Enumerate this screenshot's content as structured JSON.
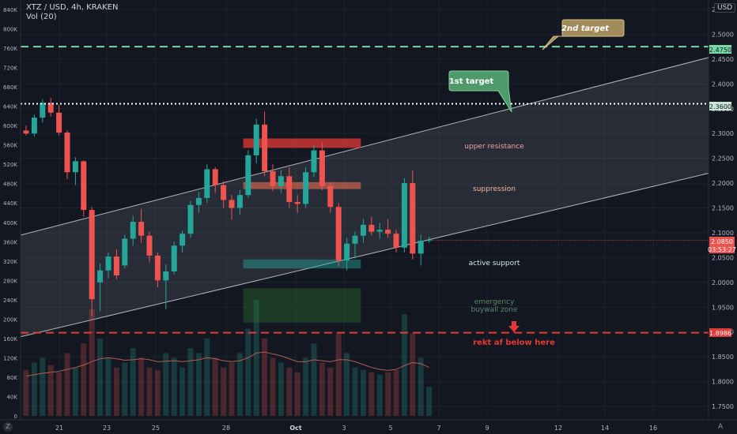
{
  "header": {
    "symbol": "XTZ / USD, 4h, KRAKEN",
    "indicator": "Vol (20)",
    "currency_button": "USD"
  },
  "colors": {
    "background": "#131722",
    "up": "#26a69a",
    "down": "#ef5350",
    "channel": "#b2b5be",
    "target_line": "#78d9a6",
    "stop_line": "#e53935"
  },
  "chart_data": {
    "type": "candlestick",
    "price_axis": {
      "ticks": [
        "2.5500",
        "2.5000",
        "2.4500",
        "2.4000",
        "2.3500",
        "2.3000",
        "2.2500",
        "2.2000",
        "2.1500",
        "2.1000",
        "2.0500",
        "2.0000",
        "1.9500",
        "1.9000",
        "1.8500",
        "1.8000",
        "1.7500"
      ],
      "range": [
        1.74,
        2.56
      ]
    },
    "volume_axis": {
      "ticks": [
        "840K",
        "800K",
        "760K",
        "720K",
        "680K",
        "640K",
        "600K",
        "560K",
        "520K",
        "480K",
        "440K",
        "400K",
        "360K",
        "320K",
        "280K",
        "240K",
        "200K",
        "160K",
        "120K",
        "80K",
        "40K",
        "0"
      ],
      "range": [
        0,
        860000
      ]
    },
    "x_axis": {
      "ticks": [
        "21",
        "23",
        "25",
        "28",
        "Oct",
        "3",
        "5",
        "7",
        "9",
        "12",
        "14",
        "16"
      ]
    },
    "price_labels": {
      "second_target": "2.4750",
      "first_target": "2.3600",
      "current": "2.0850",
      "countdown": "03:53:27",
      "stop": "1.8986"
    },
    "levels": {
      "second_target": 2.475,
      "first_target": 2.36,
      "stop": 1.8986
    },
    "channel": {
      "upper": {
        "from": [
          0,
          2.098
        ],
        "to": [
          50,
          2.312
        ]
      },
      "lower": {
        "from": [
          0,
          1.893
        ],
        "to": [
          50,
          2.09
        ]
      }
    },
    "zones": [
      {
        "label": "upper resistance",
        "from": 26.4,
        "to": 40.7,
        "top": 2.29,
        "bottom": 2.271
      },
      {
        "label": "suppression",
        "from": 26.4,
        "to": 40.7,
        "top": 2.202,
        "bottom": 2.188
      },
      {
        "label": "active support",
        "from": 26.4,
        "to": 40.7,
        "top": 2.046,
        "bottom": 2.028
      },
      {
        "label": "emergency buywall zone",
        "from": 26.4,
        "to": 40.7,
        "top": 1.988,
        "bottom": 1.919
      }
    ],
    "zone_text": {
      "upper": "upper resistance",
      "suppression": "suppression",
      "support": "active support",
      "emergency_1": "emergency",
      "emergency_2": "buywall zone"
    },
    "annotations": {
      "second_target": "2nd target",
      "first_target": "1st target",
      "stop": "rekt af below here"
    },
    "candles": [
      [
        2.306,
        2.316,
        2.296,
        2.3
      ],
      [
        2.3,
        2.338,
        2.294,
        2.332
      ],
      [
        2.332,
        2.369,
        2.322,
        2.362
      ],
      [
        2.362,
        2.372,
        2.334,
        2.342
      ],
      [
        2.342,
        2.358,
        2.296,
        2.302
      ],
      [
        2.302,
        2.306,
        2.208,
        2.222
      ],
      [
        2.222,
        2.252,
        2.196,
        2.244
      ],
      [
        2.244,
        2.246,
        2.132,
        2.146
      ],
      [
        2.146,
        2.152,
        1.932,
        1.966
      ],
      [
        2.0,
        2.038,
        1.942,
        2.024
      ],
      [
        2.024,
        2.06,
        2.008,
        2.052
      ],
      [
        2.052,
        2.066,
        2.006,
        2.014
      ],
      [
        2.034,
        2.096,
        2.028,
        2.088
      ],
      [
        2.088,
        2.134,
        2.074,
        2.122
      ],
      [
        2.122,
        2.148,
        2.08,
        2.094
      ],
      [
        2.094,
        2.102,
        2.04,
        2.054
      ],
      [
        2.054,
        2.06,
        1.99,
        2.004
      ],
      [
        2.004,
        2.036,
        1.946,
        2.022
      ],
      [
        2.022,
        2.082,
        2.016,
        2.074
      ],
      [
        2.074,
        2.104,
        2.06,
        2.098
      ],
      [
        2.098,
        2.164,
        2.09,
        2.156
      ],
      [
        2.156,
        2.182,
        2.14,
        2.17
      ],
      [
        2.17,
        2.238,
        2.16,
        2.228
      ],
      [
        2.228,
        2.232,
        2.18,
        2.196
      ],
      [
        2.196,
        2.204,
        2.15,
        2.166
      ],
      [
        2.166,
        2.176,
        2.126,
        2.15
      ],
      [
        2.15,
        2.186,
        2.136,
        2.176
      ],
      [
        2.176,
        2.266,
        2.17,
        2.256
      ],
      [
        2.256,
        2.33,
        2.24,
        2.318
      ],
      [
        2.318,
        2.344,
        2.214,
        2.224
      ],
      [
        2.224,
        2.238,
        2.184,
        2.194
      ],
      [
        2.194,
        2.226,
        2.18,
        2.214
      ],
      [
        2.214,
        2.232,
        2.15,
        2.162
      ],
      [
        2.162,
        2.176,
        2.14,
        2.158
      ],
      [
        2.158,
        2.232,
        2.15,
        2.222
      ],
      [
        2.222,
        2.276,
        2.212,
        2.266
      ],
      [
        2.266,
        2.282,
        2.186,
        2.194
      ],
      [
        2.194,
        2.202,
        2.14,
        2.152
      ],
      [
        2.152,
        2.16,
        2.032,
        2.044
      ],
      [
        2.044,
        2.09,
        2.024,
        2.078
      ],
      [
        2.078,
        2.102,
        2.048,
        2.094
      ],
      [
        2.094,
        2.128,
        2.08,
        2.116
      ],
      [
        2.116,
        2.132,
        2.094,
        2.102
      ],
      [
        2.102,
        2.12,
        2.088,
        2.106
      ],
      [
        2.106,
        2.128,
        2.09,
        2.098
      ],
      [
        2.098,
        2.106,
        2.06,
        2.07
      ],
      [
        2.07,
        2.21,
        2.06,
        2.2
      ],
      [
        2.2,
        2.226,
        2.046,
        2.058
      ],
      [
        2.058,
        2.096,
        2.034,
        2.084
      ],
      [
        2.084,
        2.092,
        2.08,
        2.085
      ]
    ],
    "volumes": [
      95000,
      110000,
      120000,
      105000,
      90000,
      130000,
      100000,
      150000,
      220000,
      160000,
      120000,
      100000,
      110000,
      140000,
      120000,
      100000,
      95000,
      130000,
      120000,
      100000,
      140000,
      130000,
      160000,
      120000,
      100000,
      110000,
      130000,
      180000,
      240000,
      160000,
      120000,
      110000,
      100000,
      90000,
      120000,
      150000,
      110000,
      100000,
      170000,
      130000,
      100000,
      95000,
      90000,
      85000,
      90000,
      95000,
      210000,
      170000,
      120000,
      60000
    ],
    "volume_ma": [
      82000,
      85000,
      88000,
      90000,
      92000,
      96000,
      100000,
      105000,
      112000,
      118000,
      120000,
      118000,
      115000,
      116000,
      118000,
      116000,
      112000,
      113000,
      114000,
      112000,
      114000,
      116000,
      120000,
      118000,
      114000,
      112000,
      114000,
      120000,
      130000,
      132000,
      128000,
      124000,
      118000,
      112000,
      112000,
      116000,
      114000,
      112000,
      116000,
      116000,
      112000,
      106000,
      100000,
      96000,
      94000,
      96000,
      104000,
      110000,
      108000,
      100000
    ]
  }
}
